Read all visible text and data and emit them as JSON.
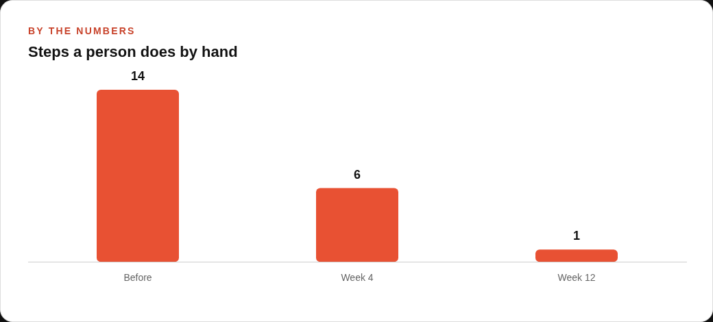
{
  "chart_data": {
    "type": "bar",
    "subtitle": "BY THE NUMBERS",
    "title": "Steps a person does by hand",
    "categories": [
      "Before",
      "Week 4",
      "Week 12"
    ],
    "values": [
      14,
      6,
      1
    ],
    "color": "#e85133",
    "tick_labels": "x",
    "grid": false,
    "legend": false,
    "data_labels": true
  }
}
